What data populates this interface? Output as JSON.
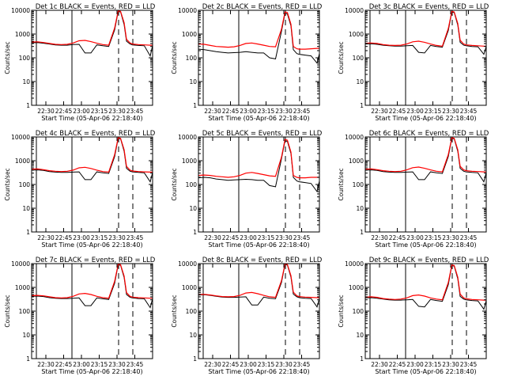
{
  "ylabel": "Counts/sec",
  "xlabel": "Start Time (05-Apr-06 22:18:40)",
  "x_ticks": [
    "22:30",
    "22:45",
    "23:00",
    "23:15",
    "23:30",
    "23:45"
  ],
  "y_ticks": [
    "1",
    "10",
    "100",
    "1000",
    "10000"
  ],
  "colors": {
    "events": "#000000",
    "lld": "#ff0000",
    "axes": "#000000"
  },
  "chart_data": [
    {
      "type": "line",
      "title": "Det 1c BLACK = Events, RED = LLD",
      "xlabel": "Start Time (05-Apr-06 22:18:40)",
      "ylabel": "Counts/sec",
      "ylim": [
        1,
        10000
      ],
      "yscale": "log",
      "x": [
        "22:18",
        "22:23",
        "22:28",
        "22:33",
        "22:38",
        "22:43",
        "22:48",
        "22:53",
        "22:58",
        "23:03",
        "23:08",
        "23:13",
        "23:18",
        "23:23",
        "23:28",
        "23:31",
        "23:33",
        "23:36",
        "23:38",
        "23:41",
        "23:43",
        "23:48",
        "23:53",
        "23:58",
        "00:00"
      ],
      "series": [
        {
          "name": "Events",
          "values": [
            430,
            440,
            410,
            380,
            350,
            340,
            340,
            360,
            370,
            160,
            160,
            350,
            320,
            300,
            1500,
            9000,
            8500,
            2500,
            500,
            380,
            350,
            330,
            320,
            120,
            330
          ]
        },
        {
          "name": "LLD",
          "values": [
            460,
            470,
            440,
            400,
            370,
            360,
            370,
            420,
            520,
            540,
            480,
            410,
            360,
            340,
            1800,
            9500,
            9000,
            3000,
            600,
            420,
            380,
            360,
            350,
            340,
            340
          ]
        }
      ]
    },
    {
      "type": "line",
      "title": "Det 2c BLACK = Events, RED = LLD",
      "xlabel": "Start Time (05-Apr-06 22:18:40)",
      "ylabel": "Counts/sec",
      "ylim": [
        1,
        10000
      ],
      "yscale": "log",
      "x": [
        "22:18",
        "22:23",
        "22:28",
        "22:33",
        "22:38",
        "22:43",
        "22:48",
        "22:53",
        "22:58",
        "23:03",
        "23:08",
        "23:13",
        "23:18",
        "23:23",
        "23:28",
        "23:31",
        "23:33",
        "23:36",
        "23:38",
        "23:41",
        "23:43",
        "23:48",
        "23:53",
        "23:58",
        "00:00"
      ],
      "series": [
        {
          "name": "Events",
          "values": [
            230,
            220,
            200,
            180,
            170,
            160,
            165,
            170,
            180,
            170,
            160,
            160,
            100,
            90,
            1300,
            7500,
            7000,
            2200,
            220,
            150,
            140,
            130,
            120,
            60,
            150
          ]
        },
        {
          "name": "LLD",
          "values": [
            380,
            370,
            330,
            300,
            290,
            280,
            290,
            330,
            400,
            420,
            380,
            340,
            300,
            290,
            1600,
            8500,
            8000,
            2600,
            300,
            240,
            230,
            230,
            240,
            250,
            250
          ]
        }
      ]
    },
    {
      "type": "line",
      "title": "Det 3c BLACK = Events, RED = LLD",
      "xlabel": "Start Time (05-Apr-06 22:18:40)",
      "ylabel": "Counts/sec",
      "ylim": [
        1,
        10000
      ],
      "yscale": "log",
      "x": [
        "22:18",
        "22:23",
        "22:28",
        "22:33",
        "22:38",
        "22:43",
        "22:48",
        "22:53",
        "22:58",
        "23:03",
        "23:08",
        "23:13",
        "23:18",
        "23:23",
        "23:28",
        "23:31",
        "23:33",
        "23:36",
        "23:38",
        "23:41",
        "23:43",
        "23:48",
        "23:53",
        "23:58",
        "00:00"
      ],
      "series": [
        {
          "name": "Events",
          "values": [
            380,
            390,
            370,
            340,
            320,
            310,
            310,
            320,
            330,
            170,
            160,
            330,
            300,
            280,
            1400,
            8500,
            8000,
            2400,
            450,
            340,
            320,
            300,
            290,
            140,
            300
          ]
        },
        {
          "name": "LLD",
          "values": [
            410,
            420,
            400,
            360,
            340,
            330,
            340,
            380,
            470,
            500,
            450,
            380,
            330,
            310,
            1700,
            9000,
            8500,
            2800,
            550,
            380,
            350,
            330,
            320,
            310,
            310
          ]
        }
      ]
    },
    {
      "type": "line",
      "title": "Det 4c BLACK = Events, RED = LLD",
      "xlabel": "Start Time (05-Apr-06 22:18:40)",
      "ylabel": "Counts/sec",
      "ylim": [
        1,
        10000
      ],
      "yscale": "log",
      "x": [
        "22:18",
        "22:23",
        "22:28",
        "22:33",
        "22:38",
        "22:43",
        "22:48",
        "22:53",
        "22:58",
        "23:03",
        "23:08",
        "23:13",
        "23:18",
        "23:23",
        "23:28",
        "23:31",
        "23:33",
        "23:36",
        "23:38",
        "23:41",
        "23:43",
        "23:48",
        "23:53",
        "23:58",
        "00:00"
      ],
      "series": [
        {
          "name": "Events",
          "values": [
            400,
            410,
            390,
            350,
            330,
            320,
            320,
            330,
            340,
            160,
            160,
            340,
            310,
            290,
            1500,
            8800,
            8300,
            2500,
            480,
            360,
            340,
            320,
            310,
            130,
            320
          ]
        },
        {
          "name": "LLD",
          "values": [
            440,
            450,
            420,
            380,
            360,
            350,
            360,
            400,
            500,
            530,
            470,
            400,
            350,
            330,
            1800,
            9300,
            8800,
            2900,
            580,
            400,
            370,
            350,
            340,
            330,
            330
          ]
        }
      ]
    },
    {
      "type": "line",
      "title": "Det 5c BLACK = Events, RED = LLD",
      "xlabel": "Start Time (05-Apr-06 22:18:40)",
      "ylabel": "Counts/sec",
      "ylim": [
        1,
        10000
      ],
      "yscale": "log",
      "x": [
        "22:18",
        "22:23",
        "22:28",
        "22:33",
        "22:38",
        "22:43",
        "22:48",
        "22:53",
        "22:58",
        "23:03",
        "23:08",
        "23:13",
        "23:18",
        "23:23",
        "23:28",
        "23:31",
        "23:33",
        "23:36",
        "23:38",
        "23:41",
        "23:43",
        "23:48",
        "23:53",
        "23:58",
        "00:00"
      ],
      "series": [
        {
          "name": "Events",
          "values": [
            190,
            200,
            190,
            170,
            160,
            150,
            155,
            160,
            165,
            160,
            150,
            150,
            90,
            80,
            1200,
            7000,
            6500,
            2000,
            200,
            140,
            130,
            120,
            110,
            50,
            140
          ]
        },
        {
          "name": "LLD",
          "values": [
            240,
            250,
            240,
            220,
            210,
            200,
            210,
            240,
            300,
            320,
            290,
            260,
            230,
            220,
            1400,
            7800,
            7300,
            2300,
            240,
            200,
            190,
            190,
            200,
            200,
            200
          ]
        }
      ]
    },
    {
      "type": "line",
      "title": "Det 6c BLACK = Events, RED = LLD",
      "xlabel": "Start Time (05-Apr-06 22:18:40)",
      "ylabel": "Counts/sec",
      "ylim": [
        1,
        10000
      ],
      "yscale": "log",
      "x": [
        "22:18",
        "22:23",
        "22:28",
        "22:33",
        "22:38",
        "22:43",
        "22:48",
        "22:53",
        "22:58",
        "23:03",
        "23:08",
        "23:13",
        "23:18",
        "23:23",
        "23:28",
        "23:31",
        "23:33",
        "23:36",
        "23:38",
        "23:41",
        "23:43",
        "23:48",
        "23:53",
        "23:58",
        "00:00"
      ],
      "series": [
        {
          "name": "Events",
          "values": [
            400,
            410,
            390,
            350,
            330,
            320,
            320,
            330,
            340,
            160,
            160,
            340,
            310,
            290,
            1500,
            8800,
            8300,
            2500,
            480,
            360,
            340,
            320,
            310,
            130,
            320
          ]
        },
        {
          "name": "LLD",
          "values": [
            440,
            450,
            420,
            380,
            360,
            350,
            360,
            410,
            510,
            540,
            480,
            410,
            360,
            340,
            1800,
            9300,
            8800,
            2900,
            580,
            410,
            380,
            360,
            350,
            340,
            340
          ]
        }
      ]
    },
    {
      "type": "line",
      "title": "Det 7c BLACK = Events, RED = LLD",
      "xlabel": "Start Time (05-Apr-06 22:18:40)",
      "ylabel": "Counts/sec",
      "ylim": [
        1,
        10000
      ],
      "yscale": "log",
      "x": [
        "22:18",
        "22:23",
        "22:28",
        "22:33",
        "22:38",
        "22:43",
        "22:48",
        "22:53",
        "22:58",
        "23:03",
        "23:08",
        "23:13",
        "23:18",
        "23:23",
        "23:28",
        "23:31",
        "23:33",
        "23:36",
        "23:38",
        "23:41",
        "23:43",
        "23:48",
        "23:53",
        "23:58",
        "00:00"
      ],
      "series": [
        {
          "name": "Events",
          "values": [
            420,
            430,
            410,
            370,
            350,
            340,
            340,
            350,
            360,
            170,
            170,
            360,
            330,
            310,
            1500,
            9000,
            8500,
            2600,
            500,
            380,
            360,
            340,
            330,
            140,
            340
          ]
        },
        {
          "name": "LLD",
          "values": [
            450,
            460,
            440,
            400,
            370,
            360,
            370,
            420,
            530,
            560,
            500,
            420,
            370,
            350,
            1800,
            9500,
            9000,
            3000,
            600,
            420,
            390,
            370,
            360,
            350,
            350
          ]
        }
      ]
    },
    {
      "type": "line",
      "title": "Det 8c BLACK = Events, RED = LLD",
      "xlabel": "Start Time (05-Apr-06 22:18:40)",
      "ylabel": "Counts/sec",
      "ylim": [
        1,
        10000
      ],
      "yscale": "log",
      "x": [
        "22:18",
        "22:23",
        "22:28",
        "22:33",
        "22:38",
        "22:43",
        "22:48",
        "22:53",
        "22:58",
        "23:03",
        "23:08",
        "23:13",
        "23:18",
        "23:23",
        "23:28",
        "23:31",
        "23:33",
        "23:36",
        "23:38",
        "23:41",
        "23:43",
        "23:48",
        "23:53",
        "23:58",
        "00:00"
      ],
      "series": [
        {
          "name": "Events",
          "values": [
            480,
            490,
            460,
            420,
            390,
            380,
            380,
            390,
            400,
            180,
            180,
            390,
            350,
            330,
            1600,
            9200,
            8700,
            2700,
            520,
            400,
            370,
            350,
            340,
            150,
            350
          ]
        },
        {
          "name": "LLD",
          "values": [
            500,
            510,
            480,
            440,
            410,
            400,
            410,
            460,
            580,
            610,
            540,
            460,
            400,
            380,
            1900,
            9700,
            9200,
            3100,
            630,
            440,
            410,
            390,
            380,
            370,
            370
          ]
        }
      ]
    },
    {
      "type": "line",
      "title": "Det 9c BLACK = Events, RED = LLD",
      "xlabel": "Start Time (05-Apr-06 22:18:40)",
      "ylabel": "Counts/sec",
      "ylim": [
        1,
        10000
      ],
      "yscale": "log",
      "x": [
        "22:18",
        "22:23",
        "22:28",
        "22:33",
        "22:38",
        "22:43",
        "22:48",
        "22:53",
        "22:58",
        "23:03",
        "23:08",
        "23:13",
        "23:18",
        "23:23",
        "23:28",
        "23:31",
        "23:33",
        "23:36",
        "23:38",
        "23:41",
        "23:43",
        "23:48",
        "23:53",
        "23:58",
        "00:00"
      ],
      "series": [
        {
          "name": "Events",
          "values": [
            360,
            370,
            350,
            320,
            300,
            290,
            290,
            300,
            310,
            160,
            150,
            310,
            280,
            260,
            1300,
            8300,
            7800,
            2300,
            420,
            320,
            300,
            280,
            270,
            120,
            280
          ]
        },
        {
          "name": "LLD",
          "values": [
            390,
            400,
            380,
            340,
            320,
            310,
            320,
            360,
            450,
            480,
            430,
            360,
            320,
            300,
            1600,
            8800,
            8300,
            2700,
            520,
            360,
            330,
            310,
            300,
            290,
            290
          ]
        }
      ]
    }
  ]
}
